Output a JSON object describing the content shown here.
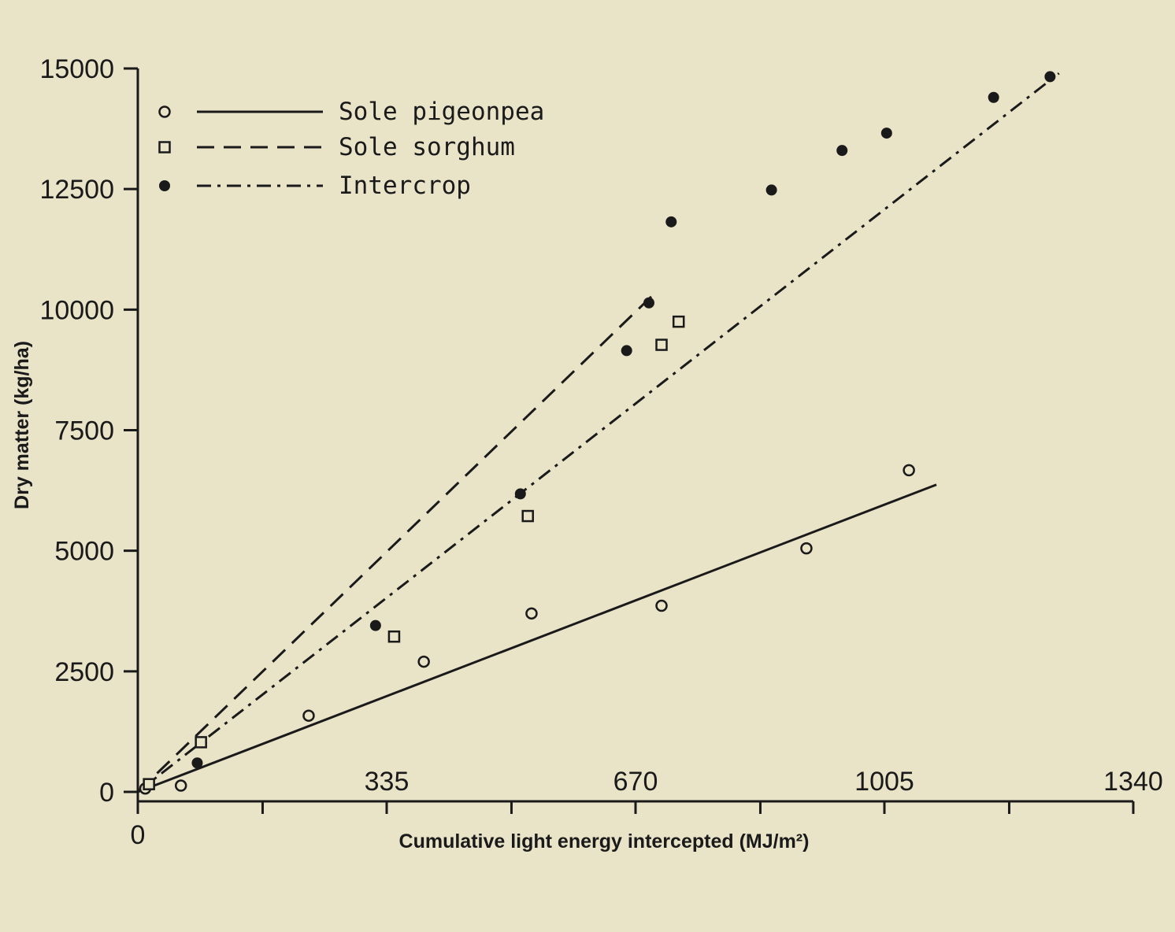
{
  "chart_data": {
    "type": "scatter",
    "xlabel": "Cumulative light energy intercepted (MJ/m²)",
    "ylabel": "Dry matter (kg/ha)",
    "xlim": [
      0,
      1340
    ],
    "ylim": [
      0,
      15000
    ],
    "x_ticks": [
      0,
      335,
      670,
      1005,
      1340
    ],
    "x_minor_ticks": [
      168,
      503,
      838,
      1173
    ],
    "y_ticks": [
      0,
      2500,
      5000,
      7500,
      10000,
      12500,
      15000
    ],
    "legend_position": "top-left",
    "grid": false,
    "series": [
      {
        "name": "Sole pigeonpea",
        "marker": "open-circle",
        "line_style": "solid",
        "points": [
          [
            10,
            70
          ],
          [
            58,
            130
          ],
          [
            230,
            1580
          ],
          [
            385,
            2700
          ],
          [
            530,
            3700
          ],
          [
            705,
            3860
          ],
          [
            900,
            5050
          ],
          [
            1038,
            6670
          ]
        ],
        "fit_line": [
          [
            0,
            0
          ],
          [
            1075,
            6370
          ]
        ]
      },
      {
        "name": "Sole sorghum",
        "marker": "open-square",
        "line_style": "dashed",
        "points": [
          [
            15,
            160
          ],
          [
            85,
            1030
          ],
          [
            345,
            3220
          ],
          [
            525,
            5720
          ],
          [
            705,
            9270
          ],
          [
            728,
            9750
          ]
        ],
        "fit_line": [
          [
            0,
            0
          ],
          [
            700,
            10400
          ]
        ]
      },
      {
        "name": "Intercrop",
        "marker": "filled-circle",
        "line_style": "dash-dot",
        "points": [
          [
            80,
            600
          ],
          [
            320,
            3450
          ],
          [
            515,
            6180
          ],
          [
            658,
            9150
          ],
          [
            688,
            10140
          ],
          [
            718,
            11820
          ],
          [
            853,
            12480
          ],
          [
            948,
            13300
          ],
          [
            1008,
            13660
          ],
          [
            1152,
            14400
          ],
          [
            1228,
            14830
          ]
        ],
        "fit_line": [
          [
            0,
            0
          ],
          [
            1240,
            14900
          ]
        ]
      }
    ]
  }
}
